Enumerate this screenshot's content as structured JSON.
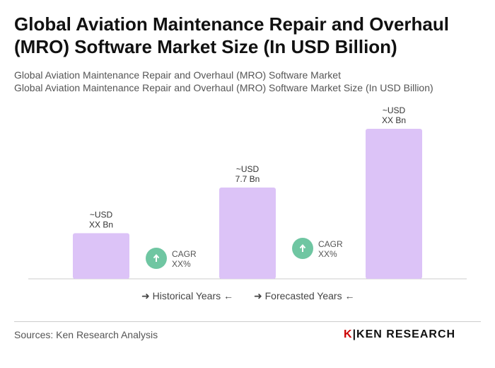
{
  "title": "Global Aviation Maintenance Repair and Overhaul (MRO) Software Market Size (In USD Billion)",
  "subtitle1": "Global Aviation Maintenance Repair and Overhaul (MRO) Software Market",
  "subtitle2": "Global Aviation Maintenance Repair and Overhaul (MRO) Software Market Size (In USD Billion)",
  "chart_data": {
    "type": "bar",
    "categories": [
      "",
      "",
      ""
    ],
    "values": [
      3.85,
      7.7,
      12.65
    ],
    "data_labels": [
      [
        "~USD",
        "XX Bn"
      ],
      [
        "~USD",
        "7.7 Bn"
      ],
      [
        "~USD",
        "XX Bn"
      ]
    ],
    "bar_color": "#dcc3f7",
    "cagr": [
      {
        "line1": "CAGR",
        "line2": "XX%"
      },
      {
        "line1": "CAGR",
        "line2": "XX%"
      }
    ],
    "cagr_color": "#6fc6a2",
    "grid": false,
    "legend": [
      "Historical Years",
      "Forecasted Years"
    ]
  },
  "sources": "Sources: Ken Research Analysis",
  "logo": "KEN RESEARCH"
}
